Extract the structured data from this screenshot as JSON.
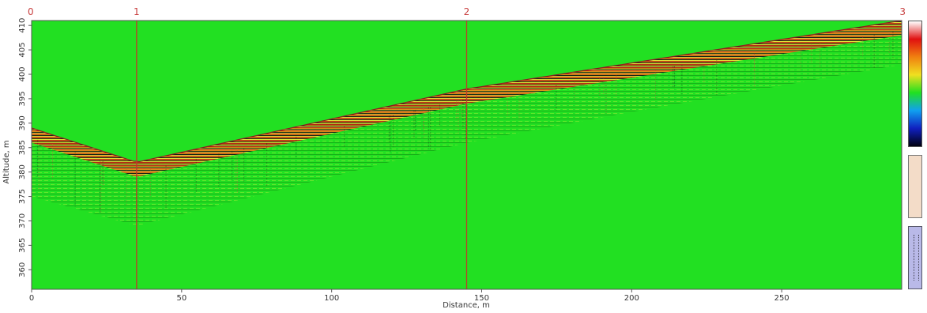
{
  "chart_data": {
    "type": "heatmap",
    "title": "",
    "xlabel": "Distance, m",
    "ylabel": "Altitude, m",
    "xlim": [
      0,
      290
    ],
    "ylim": [
      356,
      411
    ],
    "x_ticks": [
      0,
      50,
      100,
      150,
      200,
      250
    ],
    "y_ticks": [
      360,
      365,
      370,
      375,
      380,
      385,
      390,
      395,
      400,
      405,
      410
    ],
    "background_color": "#22e022",
    "grid": false,
    "markers": [
      {
        "label": "0",
        "x": 0
      },
      {
        "label": "1",
        "x": 35
      },
      {
        "label": "2",
        "x": 145
      },
      {
        "label": "3",
        "x": 290
      }
    ],
    "surface_profile": {
      "x": [
        0,
        35,
        145,
        290
      ],
      "altitude": [
        389,
        382,
        397,
        411
      ]
    },
    "signal_depth_m": {
      "x": [
        0,
        35,
        145,
        200,
        290
      ],
      "depth": [
        14,
        13,
        11,
        10,
        9
      ]
    },
    "colorscale": [
      "#000010",
      "#1020c0",
      "#10a0f0",
      "#20e020",
      "#f0e020",
      "#f08010",
      "#e01010",
      "#ffffff"
    ]
  }
}
